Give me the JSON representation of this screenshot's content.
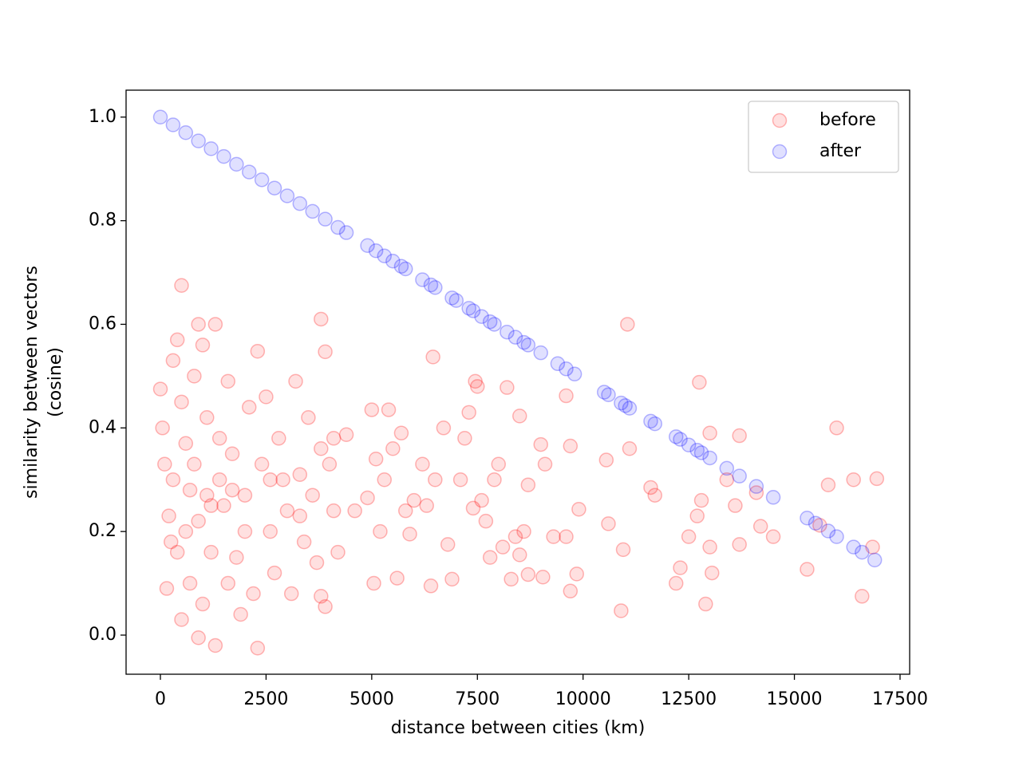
{
  "chart_data": {
    "type": "scatter",
    "xlabel": "distance between cities (km)",
    "ylabel": [
      "similarity between vectors",
      "(cosine)"
    ],
    "xlim": [
      -812,
      17727
    ],
    "ylim": [
      -0.0755,
      1.052
    ],
    "xticks": [
      0,
      2500,
      5000,
      7500,
      10000,
      12500,
      15000,
      17500
    ],
    "yticks": [
      {
        "value": 0,
        "label": "0.0"
      },
      0.2,
      0.4,
      0.6,
      0.8,
      {
        "value": 1,
        "label": "1.0"
      }
    ],
    "legend": "upper right",
    "series": [
      {
        "name": "before",
        "color": "red",
        "x": [
          500,
          900,
          1300,
          3800,
          11050,
          3900,
          2300,
          6450,
          12750,
          7450,
          16000,
          13700,
          13000,
          5000,
          5400,
          8200,
          8500,
          9600,
          7300,
          9700,
          10550,
          11100,
          11600,
          11700,
          12200,
          12300,
          12500,
          12700,
          12800,
          12900,
          13000,
          13050,
          13400,
          13600,
          13700,
          14100,
          14200,
          14500,
          15300,
          15600,
          15800,
          16400,
          16600,
          16850,
          16950,
          10900,
          10950,
          10600,
          9700,
          9850,
          9900,
          9600,
          9300,
          9050,
          9100,
          9000,
          8700,
          8700,
          8600,
          8500,
          8400,
          8300,
          8100,
          8000,
          7900,
          7800,
          7700,
          7600,
          7500,
          7400,
          7200,
          7100,
          6900,
          6800,
          6700,
          6500,
          6400,
          6300,
          6200,
          6000,
          5900,
          5800,
          5700,
          5600,
          5500,
          5300,
          5200,
          5050,
          5100,
          4900,
          4600,
          4400,
          0,
          50,
          100,
          150,
          200,
          250,
          300,
          400,
          500,
          500,
          600,
          700,
          800,
          900,
          1000,
          1000,
          1100,
          1200,
          1300,
          1400,
          1500,
          1600,
          1700,
          1800,
          1900,
          2000,
          2100,
          2200,
          2300,
          2400,
          2500,
          2600,
          2700,
          2800,
          2900,
          3000,
          3100,
          3200,
          3300,
          3400,
          3500,
          3600,
          3700,
          3800,
          3900,
          4000,
          4100,
          4200,
          700,
          900,
          1600,
          1200,
          600,
          300,
          800,
          1400,
          2000,
          2600,
          3300,
          3800,
          1100,
          1700,
          400,
          4100
        ],
        "values": [
          0.675,
          0.6,
          0.6,
          0.61,
          0.6,
          0.547,
          0.548,
          0.537,
          0.488,
          0.49,
          0.4,
          0.385,
          0.39,
          0.435,
          0.435,
          0.478,
          0.423,
          0.462,
          0.43,
          0.365,
          0.338,
          0.36,
          0.285,
          0.27,
          0.1,
          0.13,
          0.19,
          0.23,
          0.26,
          0.06,
          0.17,
          0.12,
          0.3,
          0.25,
          0.175,
          0.275,
          0.21,
          0.19,
          0.127,
          0.212,
          0.29,
          0.3,
          0.075,
          0.17,
          0.302,
          0.047,
          0.165,
          0.215,
          0.085,
          0.118,
          0.243,
          0.19,
          0.19,
          0.112,
          0.33,
          0.368,
          0.117,
          0.29,
          0.2,
          0.155,
          0.19,
          0.108,
          0.17,
          0.33,
          0.3,
          0.15,
          0.22,
          0.26,
          0.48,
          0.245,
          0.38,
          0.3,
          0.108,
          0.175,
          0.4,
          0.3,
          0.095,
          0.25,
          0.33,
          0.26,
          0.195,
          0.24,
          0.39,
          0.11,
          0.36,
          0.3,
          0.2,
          0.1,
          0.34,
          0.265,
          0.24,
          0.387,
          0.475,
          0.4,
          0.33,
          0.09,
          0.23,
          0.18,
          0.53,
          0.57,
          0.45,
          0.03,
          0.37,
          0.28,
          0.5,
          0.22,
          0.56,
          0.06,
          0.42,
          0.16,
          -0.02,
          0.3,
          0.25,
          0.49,
          0.35,
          0.15,
          0.04,
          0.27,
          0.44,
          0.08,
          -0.025,
          0.33,
          0.46,
          0.2,
          0.12,
          0.38,
          0.3,
          0.24,
          0.08,
          0.49,
          0.31,
          0.18,
          0.42,
          0.27,
          0.14,
          0.075,
          0.055,
          0.33,
          0.24,
          0.16,
          0.1,
          -0.005,
          0.1,
          0.25,
          0.2,
          0.3,
          0.33,
          0.38,
          0.2,
          0.3,
          0.23,
          0.36,
          0.27,
          0.28,
          0.16,
          0.38
        ]
      },
      {
        "name": "after",
        "color": "blue",
        "x": [
          0,
          300,
          600,
          900,
          1200,
          1500,
          1800,
          2100,
          2400,
          2700,
          3000,
          3300,
          3600,
          3900,
          4200,
          4400,
          4900,
          5100,
          5300,
          5500,
          5700,
          5800,
          6200,
          6400,
          6500,
          6900,
          7000,
          7300,
          7400,
          7600,
          7800,
          7900,
          8200,
          8400,
          8600,
          8700,
          9000,
          9400,
          9600,
          9800,
          10500,
          10600,
          10900,
          11000,
          11100,
          11600,
          11700,
          12200,
          12300,
          12500,
          12700,
          12800,
          13000,
          13400,
          13700,
          14100,
          14500,
          15300,
          15500,
          15800,
          16000,
          16400,
          16600,
          16900
        ],
        "values": [
          1.0,
          0.985,
          0.97,
          0.954,
          0.939,
          0.924,
          0.909,
          0.894,
          0.879,
          0.863,
          0.848,
          0.833,
          0.818,
          0.803,
          0.787,
          0.777,
          0.752,
          0.742,
          0.732,
          0.722,
          0.712,
          0.707,
          0.686,
          0.676,
          0.671,
          0.651,
          0.646,
          0.631,
          0.626,
          0.615,
          0.605,
          0.6,
          0.585,
          0.575,
          0.565,
          0.56,
          0.545,
          0.524,
          0.514,
          0.504,
          0.469,
          0.464,
          0.448,
          0.443,
          0.438,
          0.413,
          0.408,
          0.383,
          0.378,
          0.367,
          0.357,
          0.352,
          0.342,
          0.322,
          0.307,
          0.287,
          0.266,
          0.226,
          0.216,
          0.201,
          0.19,
          0.17,
          0.16,
          0.145
        ]
      }
    ]
  }
}
